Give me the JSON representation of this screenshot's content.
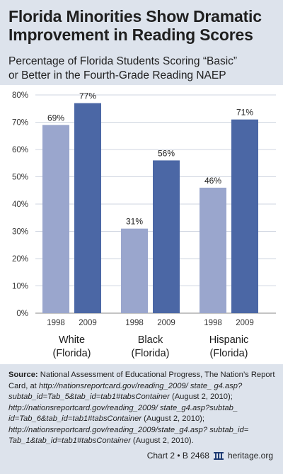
{
  "title_lines": [
    "Florida Minorities Show Dramatic",
    "Improvement in Reading Scores"
  ],
  "subtitle_lines": [
    "Percentage of Florida Students Scoring “Basic”",
    "or Better in the Fourth-Grade Reading NAEP"
  ],
  "colors": {
    "bar_1998": "#9aa6cd",
    "bar_2009": "#4b67a5",
    "background": "#dde3ec",
    "panel": "#ffffff",
    "gridline": "#cfd5e0"
  },
  "chart_data": {
    "type": "bar",
    "categories": [
      [
        "White",
        "(Florida)"
      ],
      [
        "Black",
        "(Florida)"
      ],
      [
        "Hispanic",
        "(Florida)"
      ]
    ],
    "series": [
      {
        "years": [
          "1998",
          "1998",
          "1998"
        ],
        "values": [
          69,
          31,
          46
        ],
        "labels": [
          "69%",
          "31%",
          "46%"
        ]
      },
      {
        "years": [
          "2009",
          "2009",
          "2009"
        ],
        "values": [
          77,
          56,
          71
        ],
        "labels": [
          "77%",
          "56%",
          "71%"
        ]
      }
    ],
    "yticks": [
      "0%",
      "10%",
      "20%",
      "30%",
      "40%",
      "50%",
      "60%",
      "70%",
      "80%"
    ],
    "ylim": [
      0,
      80
    ],
    "grid": true
  },
  "source": {
    "label": "Source:",
    "text_before": " National Assessment of Educational Progress, The Nation’s Report Card, at ",
    "url_1": "http://nationsreportcard.gov/reading_2009/ state_ g4.asp?subtab_id=Tab_5&tab_id=tab1#tabsContainer",
    "date_1": " (August 2, 2010); ",
    "url_2": "http://nationsreportcard.gov/reading_2009/ state_g4.asp?subtab_ id=Tab_6&tab_id=tab1#tabsContainer",
    "date_2": " (August 2, 2010); ",
    "url_3": "http://nationsreportcard.gov/reading_2009/state_g4.asp? subtab_id= Tab_1&tab_id=tab1#tabsContainer",
    "date_3": " (August 2, 2010)."
  },
  "footer": {
    "chart_ref": "Chart 2 • B 2468",
    "site": "heritage.org",
    "icon": "heritage-bell-icon"
  }
}
